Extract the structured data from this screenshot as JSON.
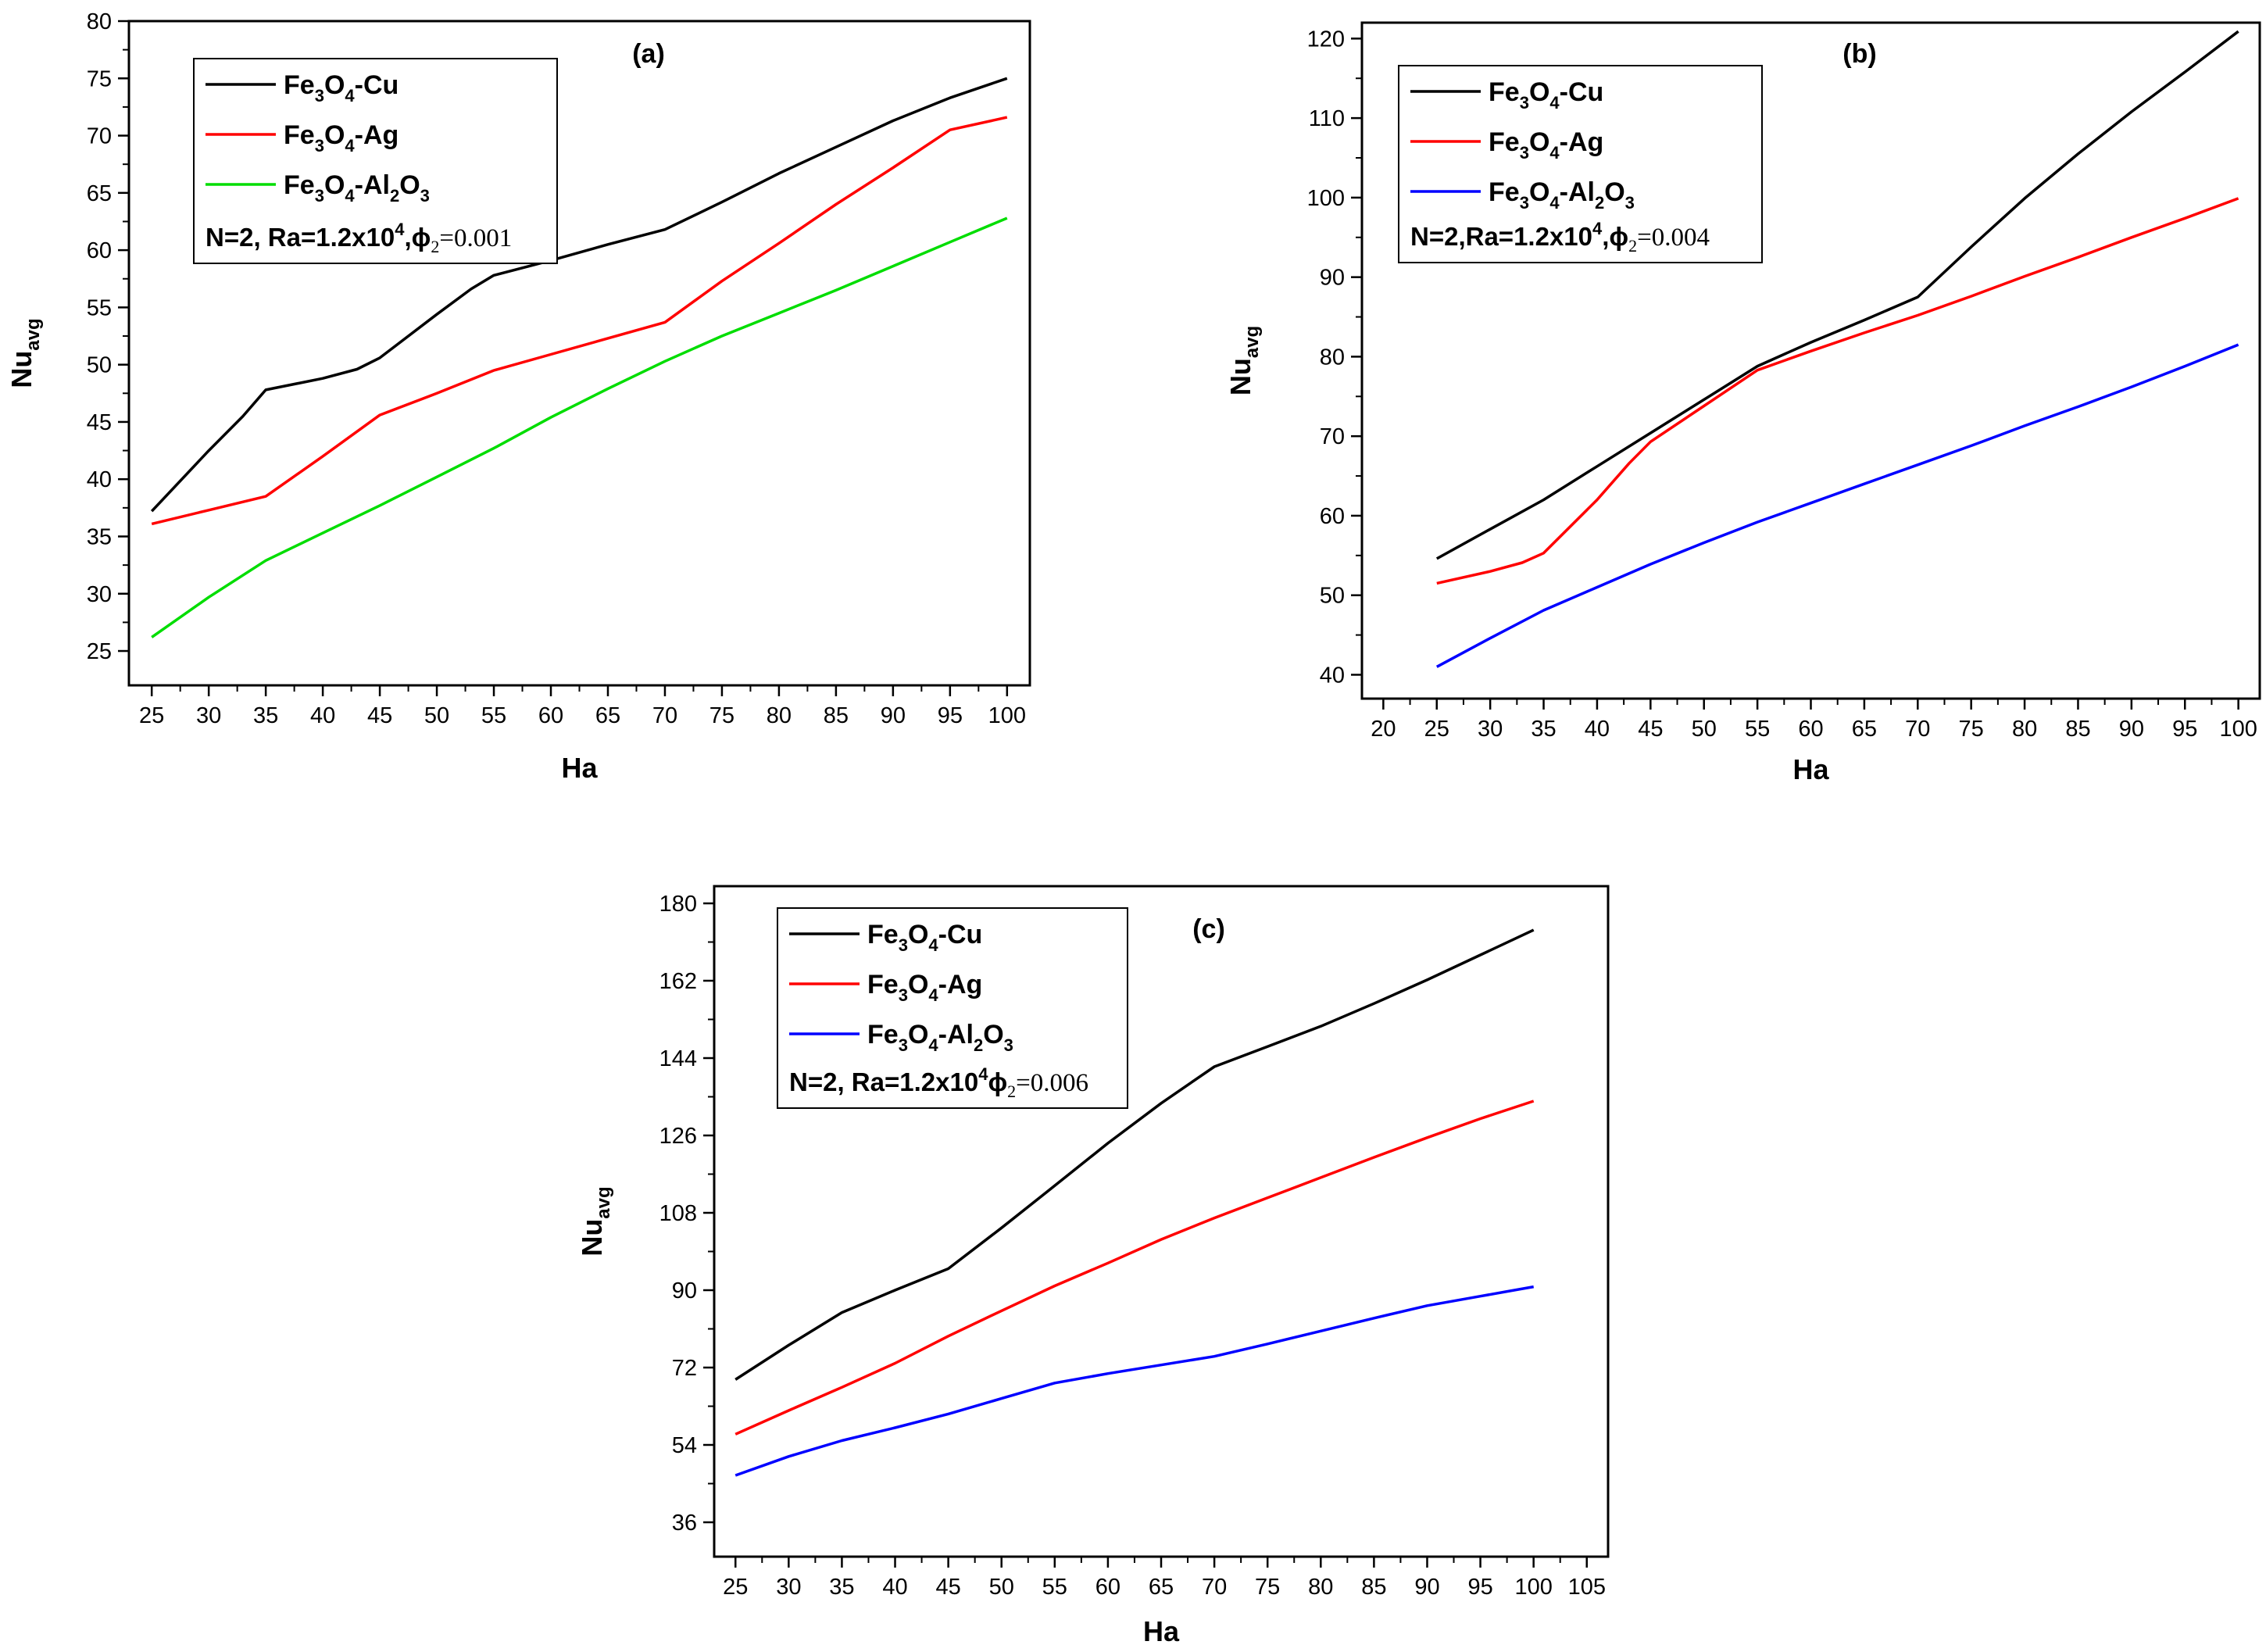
{
  "chart_data": [
    {
      "type": "line",
      "panel": "(a)",
      "xlabel": "Ha",
      "ylabel_main": "Nu",
      "ylabel_sub": "avg",
      "xlim": [
        23,
        102
      ],
      "ylim": [
        22,
        80
      ],
      "xticks": [
        25,
        30,
        35,
        40,
        45,
        50,
        55,
        60,
        65,
        70,
        75,
        80,
        85,
        90,
        95,
        100
      ],
      "yticks": [
        25,
        30,
        35,
        40,
        45,
        50,
        55,
        60,
        65,
        70,
        75,
        80
      ],
      "legend_location": "upper-left",
      "note": {
        "main": "N=2, Ra=1.2x10",
        "sup": "4",
        "phi": ",ϕ",
        "phi_sub": "2",
        "value": "=0.001"
      },
      "series": [
        {
          "name": "Fe3O4-Cu",
          "label": [
            "Fe",
            "3",
            "O",
            "4",
            "-Cu"
          ],
          "color": "#000000",
          "x": [
            25,
            30,
            33,
            35,
            40,
            43,
            45,
            50,
            53,
            55,
            60,
            65,
            70,
            75,
            80,
            85,
            90,
            95,
            100
          ],
          "y": [
            37.2,
            42.5,
            45.5,
            47.8,
            48.8,
            49.6,
            50.6,
            54.4,
            56.6,
            57.8,
            59.1,
            60.5,
            61.8,
            64.2,
            66.7,
            69.0,
            71.3,
            73.3,
            75.0
          ]
        },
        {
          "name": "Fe3O4-Ag",
          "label": [
            "Fe",
            "3",
            "O",
            "4",
            "-Ag"
          ],
          "color": "#ff0000",
          "x": [
            25,
            30,
            35,
            40,
            45,
            50,
            55,
            60,
            65,
            70,
            75,
            80,
            85,
            90,
            95,
            100
          ],
          "y": [
            36.1,
            37.3,
            38.5,
            42.0,
            45.6,
            47.5,
            49.5,
            50.9,
            52.3,
            53.7,
            57.3,
            60.6,
            64.0,
            67.2,
            70.5,
            71.6
          ]
        },
        {
          "name": "Fe3O4-Al2O3",
          "label": [
            "Fe",
            "3",
            "O",
            "4",
            "-Al",
            "2",
            "O",
            "3"
          ],
          "color": "#00dd00",
          "x": [
            25,
            30,
            35,
            40,
            45,
            50,
            55,
            60,
            65,
            70,
            75,
            80,
            85,
            90,
            95,
            100
          ],
          "y": [
            26.2,
            29.7,
            32.9,
            35.3,
            37.7,
            40.2,
            42.7,
            45.4,
            47.9,
            50.3,
            52.5,
            54.5,
            56.5,
            58.6,
            60.7,
            62.8
          ]
        }
      ]
    },
    {
      "type": "line",
      "panel": "(b)",
      "xlabel": "Ha",
      "ylabel_main": "Nu",
      "ylabel_sub": "avg",
      "xlim": [
        18,
        102
      ],
      "ylim": [
        37,
        122
      ],
      "xticks": [
        20,
        25,
        30,
        35,
        40,
        45,
        50,
        55,
        60,
        65,
        70,
        75,
        80,
        85,
        90,
        95,
        100
      ],
      "yticks": [
        40,
        50,
        60,
        70,
        80,
        90,
        100,
        110,
        120
      ],
      "legend_location": "upper-left",
      "note": {
        "main": "N=2,Ra=1.2x10",
        "sup": "4",
        "phi": ",ϕ",
        "phi_sub": "2",
        "value": "=0.004"
      },
      "series": [
        {
          "name": "Fe3O4-Cu",
          "label": [
            "Fe",
            "3",
            "O",
            "4",
            "-Cu"
          ],
          "color": "#000000",
          "x": [
            25,
            30,
            35,
            40,
            45,
            50,
            55,
            60,
            65,
            70,
            75,
            80,
            85,
            90,
            95,
            100
          ],
          "y": [
            54.6,
            58.3,
            62.0,
            66.2,
            70.4,
            74.6,
            78.8,
            81.8,
            84.6,
            87.5,
            93.8,
            99.9,
            105.5,
            110.8,
            115.8,
            120.9
          ]
        },
        {
          "name": "Fe3O4-Ag",
          "label": [
            "Fe",
            "3",
            "O",
            "4",
            "-Ag"
          ],
          "color": "#ff0000",
          "x": [
            25,
            30,
            33,
            35,
            40,
            43,
            45,
            50,
            55,
            60,
            65,
            70,
            75,
            80,
            85,
            90,
            95,
            100
          ],
          "y": [
            51.5,
            53.0,
            54.1,
            55.3,
            62.0,
            66.6,
            69.3,
            73.8,
            78.3,
            80.7,
            83.0,
            85.2,
            87.6,
            90.1,
            92.5,
            95.0,
            97.4,
            99.9
          ]
        },
        {
          "name": "Fe3O4-Al2O3",
          "label": [
            "Fe",
            "3",
            "O",
            "4",
            "-Al",
            "2",
            "O",
            "3"
          ],
          "color": "#0000ff",
          "x": [
            25,
            30,
            35,
            40,
            45,
            50,
            55,
            60,
            65,
            70,
            75,
            80,
            85,
            90,
            95,
            100
          ],
          "y": [
            41.0,
            44.6,
            48.1,
            51.0,
            53.9,
            56.6,
            59.2,
            61.6,
            64.0,
            66.4,
            68.8,
            71.3,
            73.7,
            76.2,
            78.8,
            81.5
          ]
        }
      ]
    },
    {
      "type": "line",
      "panel": "(c)",
      "xlabel": "Ha",
      "ylabel_main": "Nu",
      "ylabel_sub": "avg",
      "xlim": [
        23,
        107
      ],
      "ylim": [
        28,
        184
      ],
      "xticks": [
        25,
        30,
        35,
        40,
        45,
        50,
        55,
        60,
        65,
        70,
        75,
        80,
        85,
        90,
        95,
        100,
        105
      ],
      "yticks": [
        36,
        54,
        72,
        90,
        108,
        126,
        144,
        162,
        180
      ],
      "legend_location": "upper-left",
      "note": {
        "main": "N=2, Ra=1.2x10",
        "sup": "4",
        "phi": "ϕ",
        "phi_sub": "2",
        "value": "=0.006"
      },
      "series": [
        {
          "name": "Fe3O4-Cu",
          "label": [
            "Fe",
            "3",
            "O",
            "4",
            "-Cu"
          ],
          "color": "#000000",
          "x": [
            25,
            30,
            35,
            40,
            45,
            50,
            55,
            60,
            65,
            70,
            75,
            80,
            85,
            90,
            95,
            100
          ],
          "y": [
            69.2,
            77.2,
            84.8,
            90.0,
            95.0,
            104.5,
            114.3,
            124.2,
            133.5,
            142.0,
            146.7,
            151.4,
            156.7,
            162.2,
            168.0,
            173.8
          ]
        },
        {
          "name": "Fe3O4-Ag",
          "label": [
            "Fe",
            "3",
            "O",
            "4",
            "-Ag"
          ],
          "color": "#ff0000",
          "x": [
            25,
            30,
            35,
            40,
            45,
            50,
            55,
            60,
            65,
            70,
            75,
            80,
            85,
            90,
            95,
            100
          ],
          "y": [
            56.5,
            62.0,
            67.4,
            73.0,
            79.3,
            85.2,
            91.0,
            96.3,
            101.8,
            106.8,
            111.5,
            116.2,
            120.9,
            125.5,
            129.9,
            134.0
          ]
        },
        {
          "name": "Fe3O4-Al2O3",
          "label": [
            "Fe",
            "3",
            "O",
            "4",
            "-Al",
            "2",
            "O",
            "3"
          ],
          "color": "#0000ff",
          "x": [
            25,
            30,
            35,
            40,
            45,
            50,
            55,
            60,
            65,
            70,
            75,
            80,
            85,
            90,
            95,
            100
          ],
          "y": [
            46.9,
            51.3,
            55.0,
            58.0,
            61.2,
            64.8,
            68.4,
            70.6,
            72.6,
            74.6,
            77.5,
            80.5,
            83.5,
            86.4,
            88.6,
            90.8
          ]
        }
      ]
    }
  ]
}
